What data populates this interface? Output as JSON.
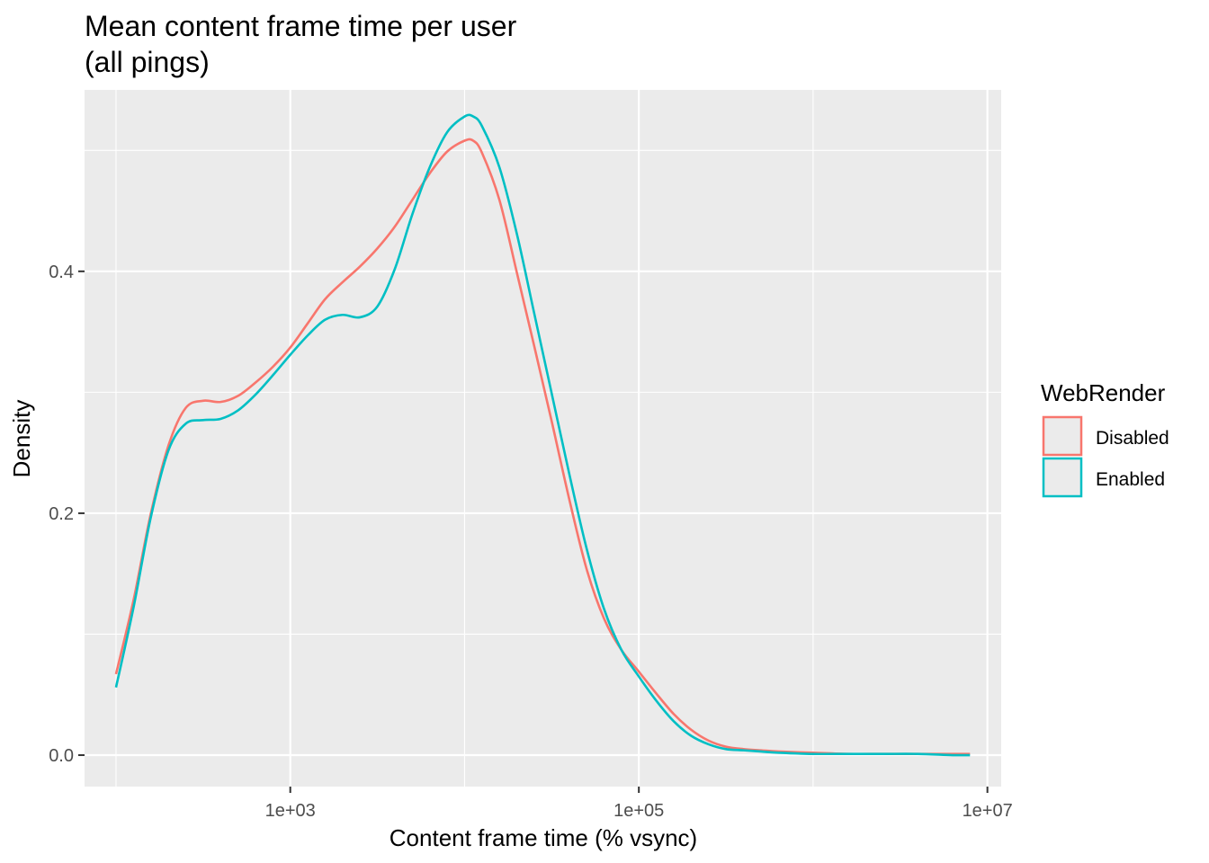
{
  "chart_data": {
    "type": "line",
    "title": "Mean content frame time per user",
    "subtitle": "(all pings)",
    "xlabel": "Content frame time (% vsync)",
    "ylabel": "Density",
    "x_scale": "log10",
    "xlim": [
      66,
      12000000
    ],
    "ylim": [
      -0.026,
      0.55
    ],
    "x_ticks": [
      {
        "value": 1000,
        "label": "1e+03"
      },
      {
        "value": 100000,
        "label": "1e+05"
      },
      {
        "value": 10000000,
        "label": "1e+07"
      }
    ],
    "y_ticks": [
      {
        "value": 0.0,
        "label": "0.0"
      },
      {
        "value": 0.2,
        "label": "0.2"
      },
      {
        "value": 0.4,
        "label": "0.4"
      }
    ],
    "grid": true,
    "legend": {
      "title": "WebRender",
      "placement": "right"
    },
    "series": [
      {
        "name": "Disabled",
        "color": "#F8766D",
        "x": [
          100,
          126,
          158,
          200,
          251,
          316,
          398,
          501,
          631,
          794,
          1000,
          1259,
          1585,
          1995,
          2512,
          3162,
          3981,
          5012,
          6310,
          7943,
          10000,
          11220,
          12589,
          15849,
          19953,
          25119,
          31623,
          39811,
          50119,
          63096,
          79433,
          100000,
          125893,
          158489,
          199526,
          251189,
          316228,
          398107,
          501187,
          630957,
          1000000,
          1584893,
          2511886,
          3981072,
          6309573,
          7943282
        ],
        "y": [
          0.067,
          0.128,
          0.199,
          0.256,
          0.287,
          0.293,
          0.292,
          0.297,
          0.308,
          0.321,
          0.337,
          0.357,
          0.377,
          0.391,
          0.404,
          0.419,
          0.437,
          0.459,
          0.481,
          0.499,
          0.508,
          0.508,
          0.498,
          0.459,
          0.399,
          0.338,
          0.276,
          0.212,
          0.154,
          0.113,
          0.087,
          0.069,
          0.051,
          0.034,
          0.021,
          0.012,
          0.007,
          0.005,
          0.004,
          0.003,
          0.002,
          0.001,
          0.001,
          0.001,
          0.001,
          0.001
        ]
      },
      {
        "name": "Enabled",
        "color": "#00BFC4",
        "x": [
          100,
          126,
          158,
          200,
          251,
          316,
          398,
          501,
          631,
          794,
          1000,
          1259,
          1585,
          1995,
          2512,
          3162,
          3981,
          5012,
          6310,
          7943,
          10000,
          11220,
          12589,
          15849,
          19953,
          25119,
          31623,
          39811,
          50119,
          63096,
          79433,
          100000,
          125893,
          158489,
          199526,
          251189,
          316228,
          398107,
          501187,
          630957,
          1000000,
          1584893,
          2511886,
          3981072,
          6309573,
          7943282
        ],
        "y": [
          0.056,
          0.122,
          0.196,
          0.252,
          0.274,
          0.277,
          0.278,
          0.285,
          0.298,
          0.314,
          0.331,
          0.347,
          0.36,
          0.364,
          0.362,
          0.371,
          0.402,
          0.447,
          0.486,
          0.515,
          0.528,
          0.528,
          0.52,
          0.486,
          0.431,
          0.365,
          0.299,
          0.233,
          0.171,
          0.121,
          0.087,
          0.065,
          0.045,
          0.028,
          0.016,
          0.009,
          0.005,
          0.004,
          0.003,
          0.002,
          0.001,
          0.001,
          0.001,
          0.001,
          0.0,
          0.0
        ]
      }
    ]
  }
}
